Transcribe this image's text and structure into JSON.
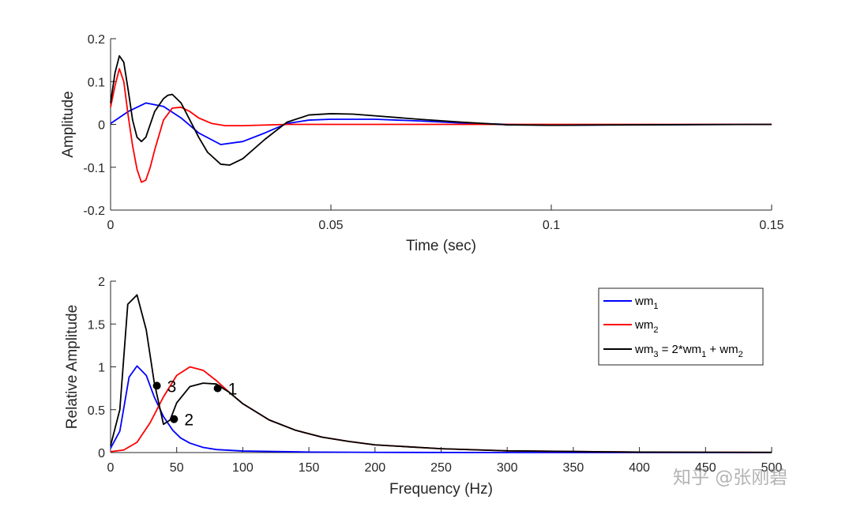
{
  "chart_data": [
    {
      "type": "line",
      "xlabel": "Time (sec)",
      "ylabel": "Amplitude",
      "xlim": [
        0,
        0.15
      ],
      "ylim": [
        -0.2,
        0.2
      ],
      "xticks": [
        0,
        0.05,
        0.1,
        0.15
      ],
      "xtick_labels": [
        "0",
        "0.05",
        "0.1",
        "0.15"
      ],
      "yticks": [
        -0.2,
        -0.1,
        0,
        0.1,
        0.2
      ],
      "ytick_labels": [
        "-0.2",
        "-0.1",
        "0",
        "0.1",
        "0.2"
      ],
      "series": [
        {
          "name": "wm1",
          "color": "#0000ff",
          "points": [
            [
              0,
              0.002
            ],
            [
              0.004,
              0.03
            ],
            [
              0.008,
              0.05
            ],
            [
              0.012,
              0.042
            ],
            [
              0.016,
              0.015
            ],
            [
              0.02,
              -0.02
            ],
            [
              0.025,
              -0.047
            ],
            [
              0.03,
              -0.04
            ],
            [
              0.035,
              -0.02
            ],
            [
              0.04,
              0.002
            ],
            [
              0.045,
              0.01
            ],
            [
              0.05,
              0.012
            ],
            [
              0.06,
              0.012
            ],
            [
              0.07,
              0.008
            ],
            [
              0.08,
              0.003
            ],
            [
              0.09,
              0
            ],
            [
              0.1,
              -0.002
            ],
            [
              0.12,
              -0.001
            ],
            [
              0.15,
              0
            ]
          ]
        },
        {
          "name": "wm2",
          "color": "#ff0000",
          "points": [
            [
              0,
              0.04
            ],
            [
              0.001,
              0.09
            ],
            [
              0.002,
              0.13
            ],
            [
              0.003,
              0.1
            ],
            [
              0.004,
              0.02
            ],
            [
              0.005,
              -0.05
            ],
            [
              0.006,
              -0.105
            ],
            [
              0.007,
              -0.135
            ],
            [
              0.008,
              -0.13
            ],
            [
              0.009,
              -0.1
            ],
            [
              0.01,
              -0.06
            ],
            [
              0.012,
              0.01
            ],
            [
              0.014,
              0.038
            ],
            [
              0.016,
              0.04
            ],
            [
              0.018,
              0.03
            ],
            [
              0.02,
              0.015
            ],
            [
              0.023,
              0.002
            ],
            [
              0.026,
              -0.003
            ],
            [
              0.03,
              -0.003
            ],
            [
              0.04,
              0
            ],
            [
              0.05,
              0
            ],
            [
              0.15,
              0
            ]
          ]
        },
        {
          "name": "wm3 = 2*wm1 + wm2",
          "color": "#000000",
          "points": [
            [
              0,
              0.05
            ],
            [
              0.001,
              0.12
            ],
            [
              0.002,
              0.16
            ],
            [
              0.003,
              0.145
            ],
            [
              0.004,
              0.08
            ],
            [
              0.005,
              0.01
            ],
            [
              0.006,
              -0.03
            ],
            [
              0.007,
              -0.04
            ],
            [
              0.008,
              -0.03
            ],
            [
              0.009,
              0
            ],
            [
              0.01,
              0.03
            ],
            [
              0.012,
              0.06
            ],
            [
              0.013,
              0.068
            ],
            [
              0.014,
              0.07
            ],
            [
              0.016,
              0.05
            ],
            [
              0.018,
              0.01
            ],
            [
              0.02,
              -0.03
            ],
            [
              0.022,
              -0.065
            ],
            [
              0.025,
              -0.093
            ],
            [
              0.027,
              -0.095
            ],
            [
              0.03,
              -0.08
            ],
            [
              0.035,
              -0.035
            ],
            [
              0.04,
              0.005
            ],
            [
              0.045,
              0.022
            ],
            [
              0.05,
              0.025
            ],
            [
              0.055,
              0.024
            ],
            [
              0.06,
              0.02
            ],
            [
              0.07,
              0.012
            ],
            [
              0.08,
              0.005
            ],
            [
              0.09,
              -0.001
            ],
            [
              0.1,
              -0.002
            ],
            [
              0.12,
              -0.001
            ],
            [
              0.15,
              0
            ]
          ]
        }
      ]
    },
    {
      "type": "line",
      "xlabel": "Frequency (Hz)",
      "ylabel": "Relative Amplitude",
      "xlim": [
        0,
        500
      ],
      "ylim": [
        0,
        2
      ],
      "xticks": [
        0,
        50,
        100,
        150,
        200,
        250,
        300,
        350,
        400,
        450,
        500
      ],
      "xtick_labels": [
        "0",
        "50",
        "100",
        "150",
        "200",
        "250",
        "300",
        "350",
        "400",
        "450",
        "500"
      ],
      "yticks": [
        0,
        0.5,
        1,
        1.5,
        2
      ],
      "ytick_labels": [
        "0",
        "0.5",
        "1",
        "1.5",
        "2"
      ],
      "legend_location": "top-right",
      "legend": [
        "wm1",
        "wm2",
        "wm3 = 2*wm1 + wm2"
      ],
      "series": [
        {
          "name": "wm1",
          "color": "#0000ff",
          "points": [
            [
              0,
              0.05
            ],
            [
              7,
              0.25
            ],
            [
              14,
              0.88
            ],
            [
              20,
              1.01
            ],
            [
              27,
              0.9
            ],
            [
              33,
              0.65
            ],
            [
              40,
              0.42
            ],
            [
              47,
              0.26
            ],
            [
              53,
              0.17
            ],
            [
              60,
              0.11
            ],
            [
              70,
              0.06
            ],
            [
              80,
              0.035
            ],
            [
              100,
              0.018
            ],
            [
              150,
              0.006
            ],
            [
              200,
              0.002
            ],
            [
              300,
              0
            ],
            [
              500,
              0
            ]
          ]
        },
        {
          "name": "wm2",
          "color": "#ff0000",
          "points": [
            [
              0,
              0.01
            ],
            [
              10,
              0.03
            ],
            [
              20,
              0.12
            ],
            [
              30,
              0.35
            ],
            [
              40,
              0.65
            ],
            [
              50,
              0.9
            ],
            [
              60,
              1.0
            ],
            [
              70,
              0.96
            ],
            [
              80,
              0.84
            ],
            [
              90,
              0.7
            ],
            [
              100,
              0.57
            ],
            [
              120,
              0.38
            ],
            [
              140,
              0.26
            ],
            [
              160,
              0.18
            ],
            [
              180,
              0.13
            ],
            [
              200,
              0.09
            ],
            [
              250,
              0.045
            ],
            [
              300,
              0.02
            ],
            [
              400,
              0.005
            ],
            [
              500,
              0.002
            ]
          ]
        },
        {
          "name": "wm3 = 2*wm1 + wm2",
          "color": "#000000",
          "points": [
            [
              0,
              0.08
            ],
            [
              7,
              0.5
            ],
            [
              13,
              1.73
            ],
            [
              20,
              1.84
            ],
            [
              27,
              1.43
            ],
            [
              33,
              0.82
            ],
            [
              40,
              0.33
            ],
            [
              45,
              0.38
            ],
            [
              50,
              0.58
            ],
            [
              60,
              0.77
            ],
            [
              70,
              0.81
            ],
            [
              80,
              0.8
            ],
            [
              90,
              0.7
            ],
            [
              100,
              0.57
            ],
            [
              120,
              0.38
            ],
            [
              140,
              0.26
            ],
            [
              160,
              0.18
            ],
            [
              180,
              0.13
            ],
            [
              200,
              0.09
            ],
            [
              250,
              0.045
            ],
            [
              300,
              0.02
            ],
            [
              400,
              0.005
            ],
            [
              500,
              0.002
            ]
          ]
        }
      ],
      "annotations": [
        {
          "label": "3",
          "x": 35,
          "y": 0.78
        },
        {
          "label": "2",
          "x": 48,
          "y": 0.39
        },
        {
          "label": "1",
          "x": 81,
          "y": 0.75
        }
      ]
    }
  ],
  "legend_texts": [
    {
      "base": "wm",
      "sub": "1",
      "rest": ""
    },
    {
      "base": "wm",
      "sub": "2",
      "rest": ""
    },
    {
      "base": "wm",
      "sub": "3",
      "rest": " = 2*wm",
      "sub2": "1",
      "rest2": " + wm",
      "sub3": "2"
    }
  ],
  "watermark": "知乎 @张刚碧"
}
